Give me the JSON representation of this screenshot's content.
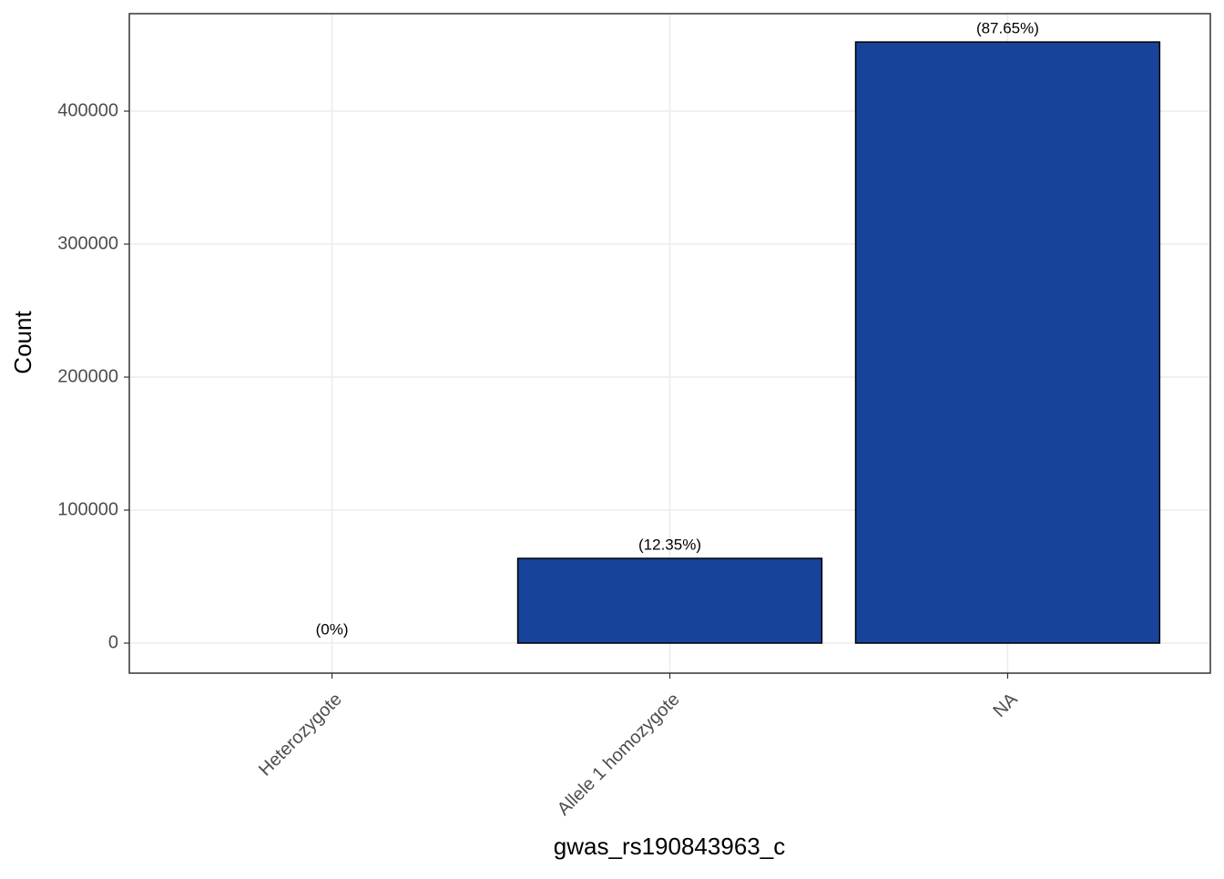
{
  "chart_data": {
    "type": "bar",
    "x_label": "gwas_rs190843963_c",
    "y_label": "Count",
    "categories": [
      "Heterozygote",
      "Allele 1 homozygote",
      "NA"
    ],
    "values": [
      0,
      63700,
      452000
    ],
    "value_labels": [
      "(0%)",
      "(12.35%)",
      "(87.65%)"
    ],
    "color": "#17449a",
    "ylim": [
      -22600,
      473300
    ],
    "yticks": [
      0,
      100000,
      200000,
      300000,
      400000
    ],
    "grid": true
  }
}
